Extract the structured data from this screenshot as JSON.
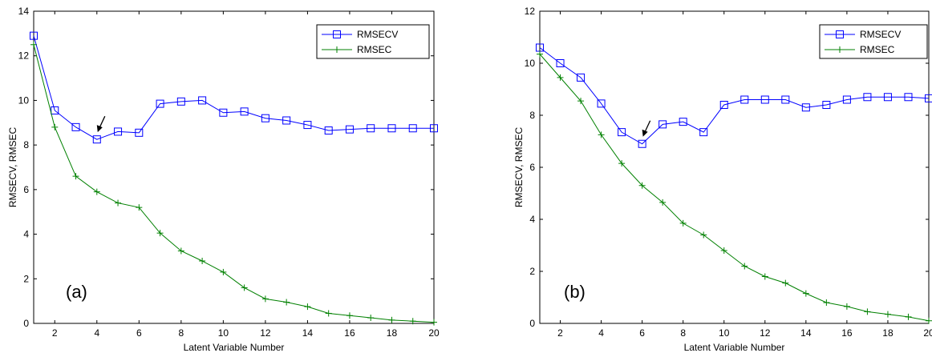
{
  "chart_data": [
    {
      "type": "line",
      "panel_label": "(a)",
      "xlabel": "Latent Variable Number",
      "ylabel": "RMSECV, RMSEC",
      "xlim": [
        1,
        20
      ],
      "ylim": [
        0,
        14
      ],
      "xticks": [
        2,
        4,
        6,
        8,
        10,
        12,
        14,
        16,
        18,
        20
      ],
      "yticks": [
        0,
        2,
        4,
        6,
        8,
        10,
        12,
        14
      ],
      "grid": false,
      "legend_position": "top-right",
      "x": [
        1,
        2,
        3,
        4,
        5,
        6,
        7,
        8,
        9,
        10,
        11,
        12,
        13,
        14,
        15,
        16,
        17,
        18,
        19,
        20
      ],
      "series": [
        {
          "name": "RMSECV",
          "color": "#0000ff",
          "marker": "square",
          "values": [
            12.9,
            9.55,
            8.8,
            8.25,
            8.6,
            8.55,
            9.85,
            9.95,
            10.0,
            9.45,
            9.5,
            9.2,
            9.1,
            8.9,
            8.65,
            8.7,
            8.75,
            8.75,
            8.75,
            8.75
          ]
        },
        {
          "name": "RMSEC",
          "color": "#008000",
          "marker": "plus",
          "values": [
            12.5,
            8.8,
            6.6,
            5.9,
            5.4,
            5.2,
            4.05,
            3.25,
            2.8,
            2.3,
            1.6,
            1.1,
            0.95,
            0.75,
            0.45,
            0.35,
            0.25,
            0.15,
            0.1,
            0.05
          ]
        }
      ],
      "annotation": {
        "type": "arrow",
        "target": [
          4,
          8.25
        ]
      }
    },
    {
      "type": "line",
      "panel_label": "(b)",
      "xlabel": "Latent Variable Number",
      "ylabel": "RMSECV, RMSEC",
      "xlim": [
        1,
        20
      ],
      "ylim": [
        0,
        12
      ],
      "xticks": [
        2,
        4,
        6,
        8,
        10,
        12,
        14,
        16,
        18,
        20
      ],
      "yticks": [
        0,
        2,
        4,
        6,
        8,
        10,
        12
      ],
      "grid": false,
      "legend_position": "top-right",
      "x": [
        1,
        2,
        3,
        4,
        5,
        6,
        7,
        8,
        9,
        10,
        11,
        12,
        13,
        14,
        15,
        16,
        17,
        18,
        19,
        20
      ],
      "series": [
        {
          "name": "RMSECV",
          "color": "#0000ff",
          "marker": "square",
          "values": [
            10.6,
            10.0,
            9.45,
            8.45,
            7.35,
            6.9,
            7.65,
            7.75,
            7.35,
            8.4,
            8.6,
            8.6,
            8.6,
            8.3,
            8.4,
            8.6,
            8.7,
            8.7,
            8.7,
            8.65
          ]
        },
        {
          "name": "RMSEC",
          "color": "#008000",
          "marker": "plus",
          "values": [
            10.35,
            9.45,
            8.55,
            7.25,
            6.15,
            5.3,
            4.65,
            3.85,
            3.4,
            2.8,
            2.2,
            1.8,
            1.55,
            1.15,
            0.8,
            0.65,
            0.45,
            0.35,
            0.25,
            0.1
          ]
        }
      ],
      "annotation": {
        "type": "arrow",
        "target": [
          6,
          6.9
        ]
      }
    }
  ]
}
